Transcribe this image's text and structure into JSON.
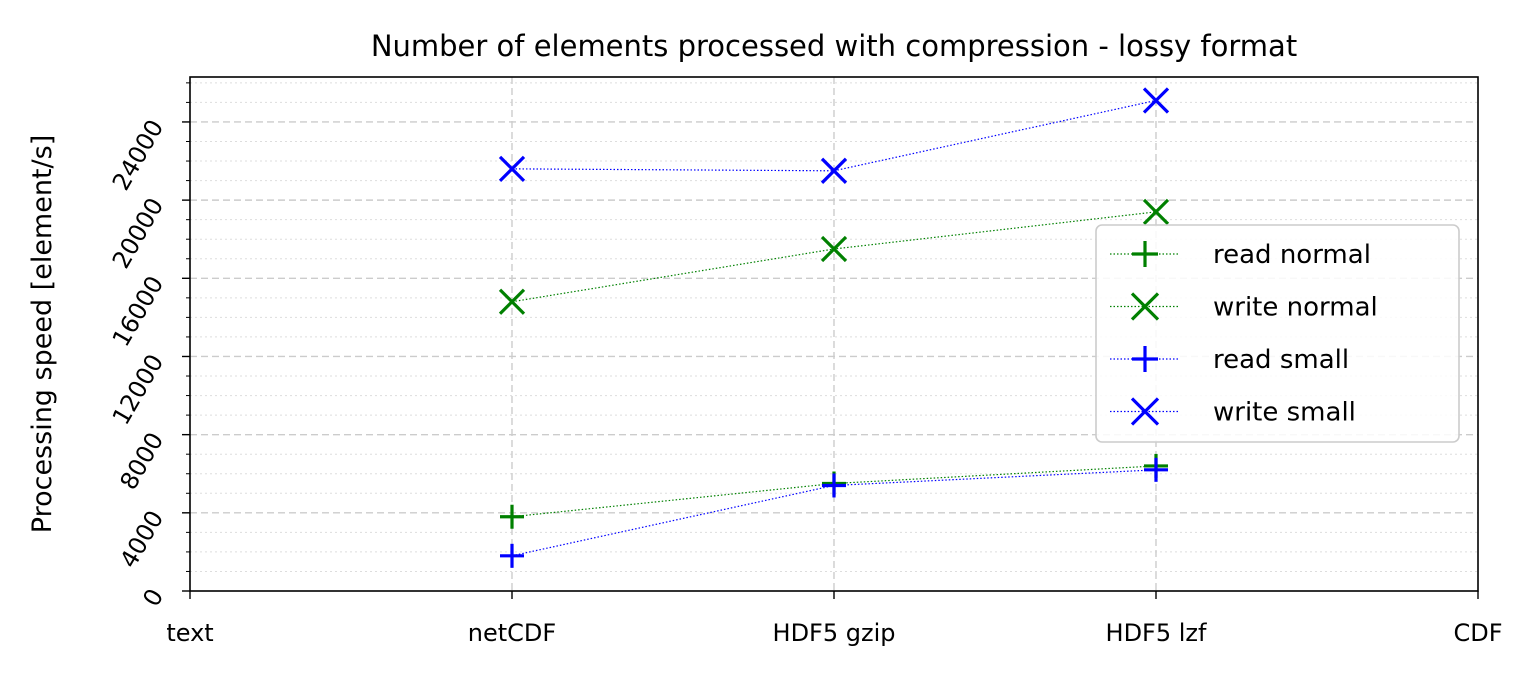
{
  "chart_data": {
    "type": "line",
    "title": "Number of elements processed with compression - lossy format",
    "xlabel": "",
    "ylabel": "Processing speed [element/s]",
    "categories": [
      "text",
      "netCDF",
      "HDF5 gzip",
      "HDF5 lzf",
      "CDF"
    ],
    "ylim": [
      0,
      26300
    ],
    "yticks": [
      0,
      4000,
      8000,
      12000,
      16000,
      20000,
      24000
    ],
    "ytick_labels": [
      "0",
      "4000",
      "8000",
      "12000",
      "16000",
      "20000",
      "24000"
    ],
    "yminor_step": 1000,
    "grid": true,
    "legend_position": "center-right",
    "series": [
      {
        "name": "read normal",
        "marker": "plus",
        "color": "#008000",
        "values": [
          null,
          3800,
          5500,
          6400,
          null
        ]
      },
      {
        "name": "write normal",
        "marker": "x",
        "color": "#008000",
        "values": [
          null,
          14800,
          17500,
          19400,
          null
        ]
      },
      {
        "name": "read small",
        "marker": "plus",
        "color": "#0000ff",
        "values": [
          null,
          1800,
          5400,
          6200,
          null
        ]
      },
      {
        "name": "write small",
        "marker": "x",
        "color": "#0000ff",
        "values": [
          null,
          21600,
          21500,
          25100,
          null
        ]
      }
    ]
  }
}
